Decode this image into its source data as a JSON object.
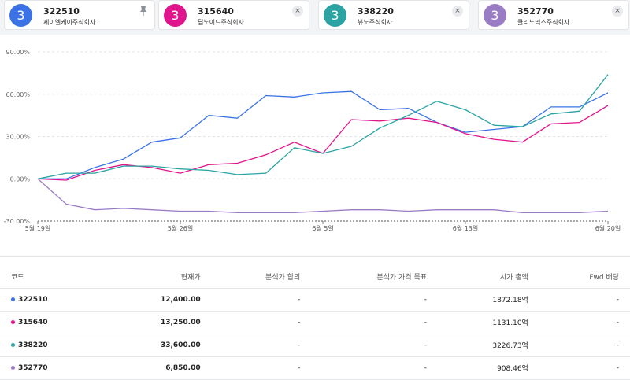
{
  "colors": {
    "s0": "#3b73e6",
    "s1": "#e0148c",
    "s2": "#2ba3a3",
    "s3": "#9a7cc4"
  },
  "cards": [
    {
      "badge": "3",
      "code": "322510",
      "name": "제이엘케이주식회사",
      "action_icon": "pin-icon",
      "color": "#3b73e6"
    },
    {
      "badge": "3",
      "code": "315640",
      "name": "딥노이드주식회사",
      "action_icon": "close-icon",
      "close_glyph": "×",
      "color": "#e0148c"
    },
    {
      "badge": "3",
      "code": "338220",
      "name": "뷰노주식회사",
      "action_icon": "close-icon",
      "close_glyph": "×",
      "color": "#2ba3a3"
    },
    {
      "badge": "3",
      "code": "352770",
      "name": "클리노믹스주식회사",
      "action_icon": "close-icon",
      "close_glyph": "×",
      "color": "#9a7cc4"
    }
  ],
  "chart_data": {
    "type": "line",
    "title": "",
    "xlabel": "",
    "ylabel": "",
    "ylim": [
      -30,
      90
    ],
    "yticks": [
      -30,
      0,
      30,
      60,
      90
    ],
    "ytick_labels": [
      "-30.00%",
      "0.00%",
      "30.00%",
      "60.00%",
      "90.00%"
    ],
    "xtick_labels": [
      "5월 19일",
      "5월 26일",
      "6월 5일",
      "6월 13일",
      "6월 20일"
    ],
    "xtick_index": [
      0,
      5,
      10,
      15,
      20
    ],
    "grid": true,
    "series": [
      {
        "name": "322510",
        "color": "#3b73e6",
        "values": [
          0,
          0,
          8,
          14,
          26,
          29,
          45,
          43,
          59,
          58,
          61,
          62,
          49,
          50,
          40,
          33,
          35,
          37,
          51,
          51,
          61
        ]
      },
      {
        "name": "315640",
        "color": "#e0148c",
        "values": [
          0,
          -1,
          6,
          10,
          8,
          4,
          10,
          11,
          17,
          26,
          18,
          42,
          41,
          43,
          40,
          32,
          28,
          26,
          39,
          40,
          52
        ]
      },
      {
        "name": "338220",
        "color": "#2ba3a3",
        "values": [
          0,
          4,
          4,
          9,
          9,
          7,
          6,
          3,
          4,
          22,
          18,
          23,
          36,
          45,
          55,
          49,
          38,
          37,
          46,
          48,
          74
        ]
      },
      {
        "name": "352770",
        "color": "#9a7cc4",
        "values": [
          0,
          -18,
          -22,
          -21,
          -22,
          -23,
          -23,
          -24,
          -24,
          -24,
          -23,
          -22,
          -22,
          -23,
          -22,
          -22,
          -22,
          -24,
          -24,
          -24,
          -23
        ]
      }
    ]
  },
  "table": {
    "headers": [
      "코드",
      "현재가",
      "분석가 합의",
      "분석가 가격 목표",
      "시가 총액",
      "Fwd 배당"
    ],
    "rows": [
      {
        "code": "322510",
        "color": "#3b73e6",
        "price": "12,400.00",
        "consensus": "-",
        "target": "-",
        "mcap": "1872.18억",
        "fwd": "-"
      },
      {
        "code": "315640",
        "color": "#e0148c",
        "price": "13,250.00",
        "consensus": "-",
        "target": "-",
        "mcap": "1131.10억",
        "fwd": "-"
      },
      {
        "code": "338220",
        "color": "#2ba3a3",
        "price": "33,600.00",
        "consensus": "-",
        "target": "-",
        "mcap": "3226.73억",
        "fwd": "-"
      },
      {
        "code": "352770",
        "color": "#9a7cc4",
        "price": "6,850.00",
        "consensus": "-",
        "target": "-",
        "mcap": "908.46억",
        "fwd": "-"
      }
    ]
  }
}
